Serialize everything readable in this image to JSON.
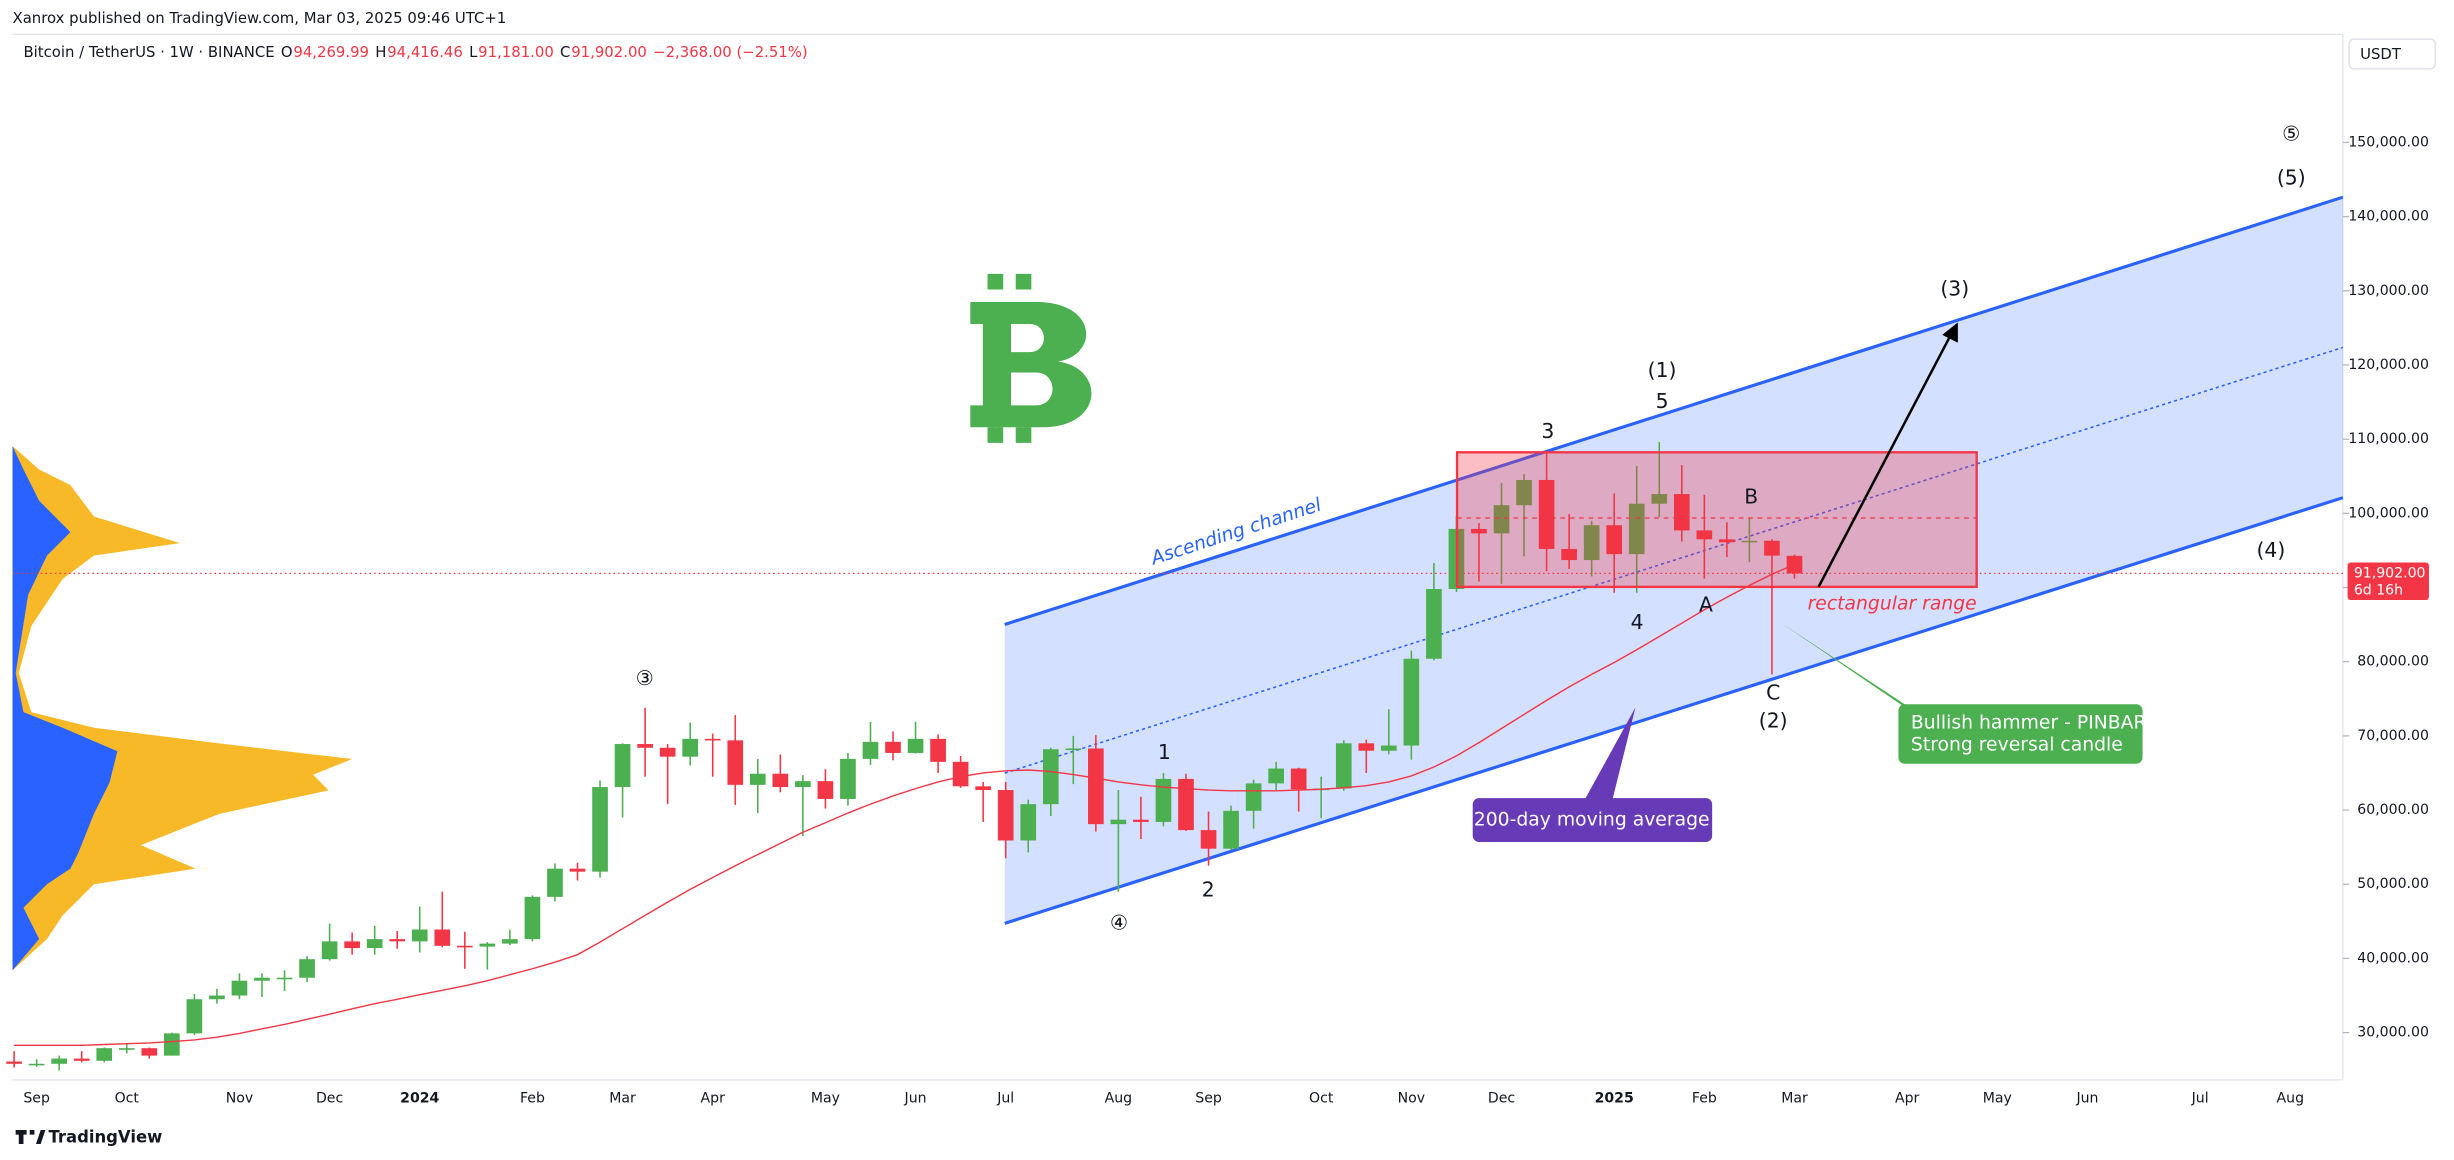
{
  "header": {
    "publisher_line": "Xanrox published on TradingView.com, Mar 03, 2025 09:46 UTC+1",
    "symbol": "Bitcoin / TetherUS · 1W · BINANCE",
    "ohlc": [
      {
        "key": "O",
        "label": "94,269.99"
      },
      {
        "key": "H",
        "label": "94,416.46"
      },
      {
        "key": "L",
        "label": "91,181.00"
      },
      {
        "key": "C",
        "label": "91,902.00"
      }
    ],
    "change_label": "−2,368.00 (−2.51%)",
    "currency": "USDT"
  },
  "footer": {
    "brand": "TradingView"
  },
  "chart_data": {
    "type": "candlestick",
    "categories": [
      null,
      "Sep",
      null,
      null,
      null,
      "Oct",
      null,
      null,
      null,
      null,
      "Nov",
      null,
      null,
      null,
      "Dec",
      null,
      null,
      null,
      "2024",
      null,
      null,
      null,
      null,
      "Feb",
      null,
      null,
      null,
      "Mar",
      null,
      null,
      null,
      "Apr",
      null,
      null,
      null,
      null,
      "May",
      null,
      null,
      null,
      "Jun",
      null,
      null,
      null,
      "Jul",
      null,
      null,
      null,
      null,
      "Aug",
      null,
      null,
      null,
      "Sep",
      null,
      null,
      null,
      null,
      "Oct",
      null,
      null,
      null,
      "Nov",
      null,
      null,
      null,
      "Dec",
      null,
      null,
      null,
      null,
      "2025",
      null,
      null,
      null,
      "Feb",
      null,
      null,
      null,
      "Mar",
      null,
      null,
      null,
      null,
      "Apr",
      null,
      null,
      null,
      "May",
      null,
      null,
      null,
      "Jun",
      null,
      null,
      null,
      null,
      "Jul",
      null,
      null,
      null,
      "Aug",
      null,
      null
    ],
    "open": [
      26100,
      25800,
      25800,
      26500,
      26200,
      27900,
      27900,
      26900,
      29900,
      34500,
      35000,
      37000,
      37400,
      37400,
      39900,
      42300,
      41400,
      42600,
      42300,
      43900,
      41700,
      41600,
      42000,
      42600,
      48300,
      52100,
      51700,
      63100,
      68900,
      68400,
      67200,
      69600,
      69400,
      63400,
      64900,
      63100,
      63900,
      61500,
      66900,
      69200,
      67700,
      69600,
      66500,
      63200,
      62700,
      55900,
      60800,
      68200,
      68300,
      58100,
      58700,
      58400,
      64200,
      57300,
      54800,
      59900,
      63600,
      65600,
      62800,
      62900,
      69000,
      68000,
      68700,
      80400,
      89800,
      97900,
      97300,
      101100,
      104500,
      95200,
      93700,
      98400,
      94500,
      101300,
      102600,
      97700,
      96500,
      96100,
      96300,
      94269.99,
      null,
      null,
      null,
      null,
      null,
      null,
      null,
      null,
      null,
      null,
      null,
      null,
      null,
      null,
      null,
      null,
      null,
      null,
      null,
      null,
      null,
      null,
      null,
      null
    ],
    "high": [
      27500,
      26400,
      26900,
      27500,
      28000,
      28600,
      28000,
      30000,
      35200,
      35900,
      38000,
      38000,
      38400,
      40300,
      44700,
      43500,
      44400,
      43700,
      47000,
      49000,
      43600,
      42200,
      43900,
      48500,
      52800,
      52900,
      64000,
      69000,
      73800,
      68900,
      71800,
      70300,
      72800,
      66900,
      67500,
      64700,
      65500,
      67700,
      71900,
      70600,
      71900,
      70200,
      67300,
      63800,
      63800,
      61400,
      68400,
      70000,
      70100,
      62700,
      61800,
      65000,
      64900,
      59800,
      60600,
      64100,
      66500,
      65700,
      64500,
      69400,
      69500,
      73600,
      81500,
      93300,
      99600,
      98700,
      104100,
      105300,
      108400,
      99900,
      99000,
      102700,
      106400,
      109600,
      106500,
      102500,
      98800,
      99500,
      96500,
      94416.46,
      null,
      null,
      null,
      null,
      null,
      null,
      null,
      null,
      null,
      null,
      null,
      null,
      null,
      null,
      null,
      null,
      null,
      null,
      null,
      null,
      null,
      null,
      null,
      null
    ],
    "low": [
      25300,
      25400,
      24900,
      26000,
      26000,
      27200,
      26500,
      26900,
      29700,
      33900,
      34500,
      34800,
      35600,
      36800,
      39700,
      40500,
      40500,
      41300,
      40800,
      41500,
      38600,
      38500,
      41800,
      42300,
      47700,
      50500,
      50900,
      59000,
      64500,
      60800,
      66000,
      64500,
      60700,
      59600,
      62400,
      56500,
      60200,
      60600,
      66100,
      66700,
      67600,
      65000,
      63000,
      58400,
      53500,
      54300,
      59200,
      63500,
      57100,
      49000,
      56100,
      57800,
      57200,
      52500,
      54600,
      57500,
      62700,
      59800,
      58900,
      62600,
      65000,
      67500,
      66800,
      80200,
      89400,
      90800,
      90500,
      94200,
      92200,
      92500,
      91500,
      89300,
      89300,
      99500,
      96200,
      91200,
      94100,
      93400,
      78300,
      91181,
      null,
      null,
      null,
      null,
      null,
      null,
      null,
      null,
      null,
      null,
      null,
      null,
      null,
      null,
      null,
      null,
      null,
      null,
      null,
      null,
      null,
      null,
      null,
      null
    ],
    "close": [
      25800,
      25800,
      26500,
      26200,
      27900,
      27900,
      26900,
      29900,
      34500,
      35000,
      37000,
      37400,
      37400,
      39900,
      42300,
      41400,
      42600,
      42300,
      43900,
      41700,
      41600,
      42000,
      42600,
      48300,
      52100,
      51700,
      63100,
      68900,
      68400,
      67200,
      69600,
      69400,
      63400,
      64900,
      63100,
      63900,
      61500,
      66900,
      69200,
      67700,
      69600,
      66500,
      63200,
      62700,
      55900,
      60800,
      68200,
      68300,
      58100,
      58700,
      58400,
      64200,
      57300,
      54800,
      59900,
      63600,
      65600,
      62800,
      62900,
      69000,
      68000,
      68700,
      80400,
      89800,
      97900,
      97300,
      101100,
      104500,
      95200,
      93700,
      98400,
      94500,
      101300,
      102600,
      97700,
      96500,
      96100,
      96300,
      94300,
      91902,
      null,
      null,
      null,
      null,
      null,
      null,
      null,
      null,
      null,
      null,
      null,
      null,
      null,
      null,
      null,
      null,
      null,
      null,
      null,
      null,
      null,
      null,
      null,
      null
    ],
    "up_color": "#4caf50",
    "down_color": "#f23645",
    "moving_average": {
      "color": "#f23645",
      "values": [
        28300,
        28300,
        28300,
        28300,
        28400,
        28500,
        28600,
        28800,
        29000,
        29400,
        29900,
        30500,
        31100,
        31800,
        32500,
        33200,
        33900,
        34500,
        35100,
        35700,
        36300,
        37000,
        37800,
        38600,
        39500,
        40500,
        42200,
        44000,
        45800,
        47600,
        49300,
        50900,
        52500,
        54000,
        55500,
        57000,
        58300,
        59600,
        60800,
        61900,
        62900,
        63800,
        64500,
        65000,
        65300,
        65400,
        65200,
        64800,
        64300,
        63800,
        63400,
        63100,
        62900,
        62700,
        62600,
        62600,
        62600,
        62700,
        62800,
        63000,
        63300,
        63800,
        64600,
        65800,
        67300,
        69100,
        71000,
        72900,
        74800,
        76600,
        78300,
        79900,
        81600,
        83400,
        85200,
        87000,
        88700,
        90300,
        91800,
        93100,
        null,
        null,
        null,
        null,
        null,
        null,
        null,
        null,
        null,
        null,
        null,
        null,
        null,
        null,
        null,
        null,
        null,
        null,
        null,
        null,
        null,
        null,
        null,
        null
      ]
    },
    "last_price": {
      "value": 91902,
      "label": "91,902.00",
      "countdown": "6d 16h",
      "color": "#f23645"
    },
    "ylim": [
      23630,
      164560
    ],
    "yticks": [
      {
        "value": 30000,
        "label": "30,000.00"
      },
      {
        "value": 40000,
        "label": "40,000.00"
      },
      {
        "value": 50000,
        "label": "50,000.00"
      },
      {
        "value": 60000,
        "label": "60,000.00"
      },
      {
        "value": 70000,
        "label": "70,000.00"
      },
      {
        "value": 80000,
        "label": "80,000.00"
      },
      {
        "value": 90000,
        "label": "90,000.00"
      },
      {
        "value": 100000,
        "label": "100,000.00"
      },
      {
        "value": 110000,
        "label": "110,000.00"
      },
      {
        "value": 120000,
        "label": "120,000.00"
      },
      {
        "value": 130000,
        "label": "130,000.00"
      },
      {
        "value": 140000,
        "label": "140,000.00"
      },
      {
        "value": 150000,
        "label": "150,000.00"
      }
    ],
    "grid": false,
    "annotations": [
      "Ascending channel",
      "rectangular range",
      "③",
      "④",
      "⑤",
      "(5)",
      "(3)",
      "(1)",
      "5",
      "3",
      "B",
      "4",
      "A",
      "C",
      "(2)",
      "(4)",
      "1",
      "2"
    ],
    "callouts": {
      "moving_average": "200-day moving average",
      "hammer": [
        "Bullish hammer - PINBAR",
        "Strong reversal candle"
      ]
    }
  }
}
